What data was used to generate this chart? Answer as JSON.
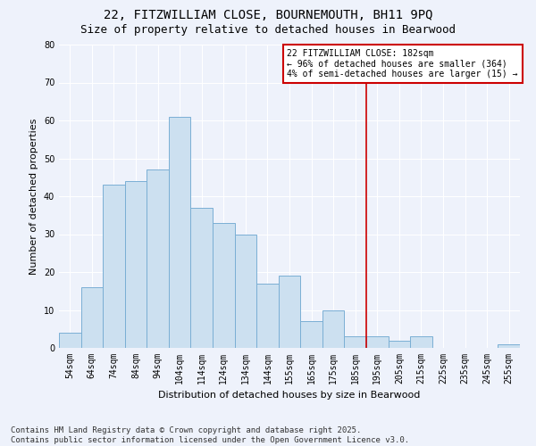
{
  "title": "22, FITZWILLIAM CLOSE, BOURNEMOUTH, BH11 9PQ",
  "subtitle": "Size of property relative to detached houses in Bearwood",
  "xlabel": "Distribution of detached houses by size in Bearwood",
  "ylabel": "Number of detached properties",
  "categories": [
    "54sqm",
    "64sqm",
    "74sqm",
    "84sqm",
    "94sqm",
    "104sqm",
    "114sqm",
    "124sqm",
    "134sqm",
    "144sqm",
    "155sqm",
    "165sqm",
    "175sqm",
    "185sqm",
    "195sqm",
    "205sqm",
    "215sqm",
    "225sqm",
    "235sqm",
    "245sqm",
    "255sqm"
  ],
  "values": [
    4,
    16,
    43,
    44,
    47,
    61,
    37,
    33,
    30,
    17,
    19,
    7,
    10,
    3,
    3,
    2,
    3,
    0,
    0,
    0,
    1
  ],
  "bar_color": "#cce0f0",
  "bar_edge_color": "#7aafd4",
  "vline_color": "#cc0000",
  "vline_index": 13.5,
  "ylim": [
    0,
    80
  ],
  "yticks": [
    0,
    10,
    20,
    30,
    40,
    50,
    60,
    70,
    80
  ],
  "annotation_text": "22 FITZWILLIAM CLOSE: 182sqm\n← 96% of detached houses are smaller (364)\n4% of semi-detached houses are larger (15) →",
  "annotation_box_color": "#cc0000",
  "footer_text": "Contains HM Land Registry data © Crown copyright and database right 2025.\nContains public sector information licensed under the Open Government Licence v3.0.",
  "background_color": "#eef2fb",
  "plot_background_color": "#eef2fb",
  "grid_color": "#ffffff",
  "title_fontsize": 10,
  "subtitle_fontsize": 9,
  "xlabel_fontsize": 8,
  "ylabel_fontsize": 8,
  "tick_fontsize": 7,
  "annotation_fontsize": 7,
  "footer_fontsize": 6.5
}
